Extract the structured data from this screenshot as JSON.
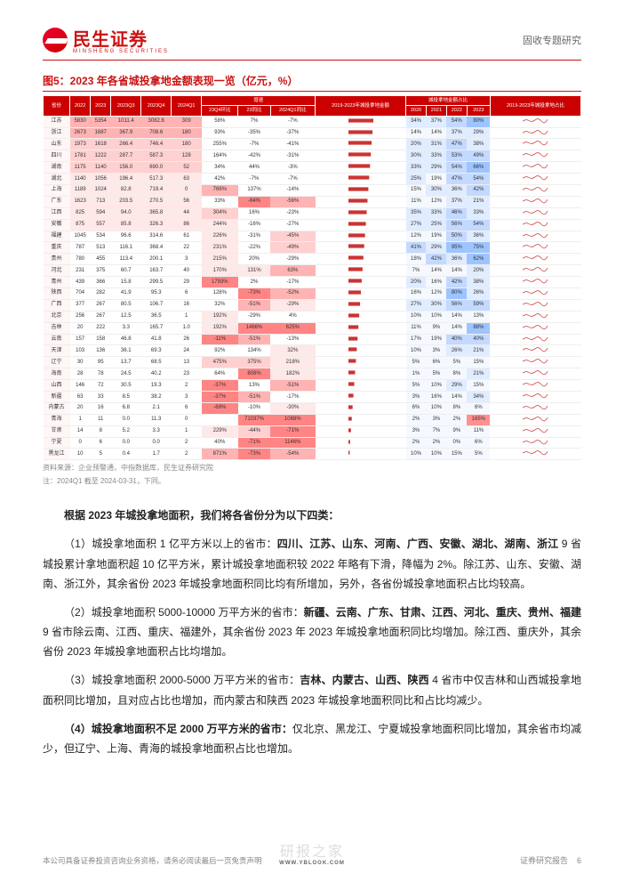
{
  "header": {
    "brand": "民生证券",
    "brand_sub": "MINSHENG SECURITIES",
    "doc_type": "固收专题研究"
  },
  "figure": {
    "title": "图5：2023 年各省城投拿地金额表现一览（亿元，%）",
    "source": "资料来源：企业预警通，中指数据库，民生证券研究院",
    "note": "注：2024Q1 截至 2024-03-31，下同。"
  },
  "table": {
    "header_row1": [
      "省份",
      "2022",
      "2023",
      "2023Q3",
      "2023Q4",
      "2024Q1",
      "增速",
      "2019-2023年城投拿地金额",
      "城投拿地金额占比",
      "2019-2023年城投拿地占比"
    ],
    "header_row2_growth": [
      "23Q4环比",
      "23同比",
      "2024Q1同比"
    ],
    "header_row2_ratio": [
      "2020",
      "2021",
      "2022",
      "2023"
    ],
    "rows": [
      {
        "p": "江苏",
        "v": [
          "5830",
          "5354",
          "1011.4",
          "3082.6",
          "309",
          "58%",
          "7%",
          "-7%"
        ],
        "r": [
          "34%",
          "37%",
          "54%",
          "80%"
        ],
        "c": [
          0,
          0,
          0,
          0,
          0,
          0,
          0,
          0
        ],
        "rc": [
          1,
          1,
          2,
          3
        ]
      },
      {
        "p": "浙江",
        "v": [
          "2673",
          "1687",
          "367.9",
          "708.6",
          "180",
          "93%",
          "-35%",
          "-37%"
        ],
        "r": [
          "14%",
          "14%",
          "37%",
          "29%"
        ],
        "c": [
          0,
          0,
          0,
          0,
          0,
          0,
          0,
          0
        ],
        "rc": [
          0,
          0,
          1,
          1
        ]
      },
      {
        "p": "山东",
        "v": [
          "1973",
          "1618",
          "266.4",
          "746.4",
          "180",
          "255%",
          "-7%",
          "-41%"
        ],
        "r": [
          "20%",
          "31%",
          "47%",
          "38%"
        ],
        "c": [
          0,
          0,
          0,
          0,
          0,
          0,
          0,
          0
        ],
        "rc": [
          1,
          1,
          2,
          1
        ]
      },
      {
        "p": "四川",
        "v": [
          "1781",
          "1222",
          "287.7",
          "587.3",
          "128",
          "164%",
          "-42%",
          "-31%"
        ],
        "r": [
          "30%",
          "33%",
          "53%",
          "49%"
        ],
        "c": [
          0,
          0,
          0,
          0,
          0,
          0,
          0,
          0
        ],
        "rc": [
          1,
          1,
          2,
          2
        ]
      },
      {
        "p": "湖南",
        "v": [
          "1175",
          "1140",
          "156.0",
          "690.0",
          "52",
          "34%",
          "44%",
          "-3%"
        ],
        "r": [
          "33%",
          "29%",
          "54%",
          "66%"
        ],
        "c": [
          0,
          0,
          0,
          0,
          0,
          0,
          0,
          0
        ],
        "rc": [
          1,
          1,
          2,
          3
        ]
      },
      {
        "p": "湖北",
        "v": [
          "1140",
          "1056",
          "196.4",
          "517.3",
          "63",
          "42%",
          "-7%",
          "-7%"
        ],
        "r": [
          "25%",
          "19%",
          "47%",
          "54%"
        ],
        "c": [
          0,
          0,
          0,
          0,
          0,
          0,
          0,
          0
        ],
        "rc": [
          1,
          0,
          2,
          2
        ]
      },
      {
        "p": "上海",
        "v": [
          "1189",
          "1024",
          "82.8",
          "719.4",
          "0",
          "769%",
          "137%",
          "-14%"
        ],
        "r": [
          "15%",
          "30%",
          "36%",
          "42%"
        ],
        "c": [
          0,
          0,
          0,
          0,
          4,
          3,
          0,
          0
        ],
        "rc": [
          0,
          1,
          1,
          2
        ]
      },
      {
        "p": "广东",
        "v": [
          "1623",
          "713",
          "203.5",
          "270.5",
          "56",
          "33%",
          "-64%",
          "-56%"
        ],
        "r": [
          "11%",
          "12%",
          "37%",
          "21%"
        ],
        "c": [
          0,
          0,
          0,
          0,
          0,
          0,
          4,
          3
        ],
        "rc": [
          0,
          0,
          1,
          1
        ]
      },
      {
        "p": "江西",
        "v": [
          "825",
          "594",
          "94.0",
          "365.8",
          "44",
          "304%",
          "16%",
          "-23%"
        ],
        "r": [
          "35%",
          "33%",
          "46%",
          "33%"
        ],
        "c": [
          0,
          0,
          0,
          0,
          0,
          2,
          0,
          0
        ],
        "rc": [
          1,
          1,
          2,
          1
        ]
      },
      {
        "p": "安徽",
        "v": [
          "875",
          "557",
          "85.8",
          "326.3",
          "86",
          "244%",
          "-16%",
          "-27%"
        ],
        "r": [
          "27%",
          "25%",
          "56%",
          "54%"
        ],
        "c": [
          0,
          0,
          0,
          0,
          0,
          1,
          0,
          0
        ],
        "rc": [
          1,
          1,
          2,
          2
        ]
      },
      {
        "p": "福建",
        "v": [
          "1045",
          "534",
          "96.6",
          "314.6",
          "61",
          "226%",
          "-31%",
          "-45%"
        ],
        "r": [
          "12%",
          "19%",
          "50%",
          "36%"
        ],
        "c": [
          0,
          0,
          0,
          0,
          0,
          1,
          0,
          2
        ],
        "rc": [
          0,
          0,
          2,
          1
        ]
      },
      {
        "p": "重庆",
        "v": [
          "787",
          "513",
          "116.1",
          "368.4",
          "22",
          "231%",
          "-22%",
          "-49%"
        ],
        "r": [
          "41%",
          "29%",
          "95%",
          "75%"
        ],
        "c": [
          0,
          0,
          0,
          0,
          0,
          1,
          0,
          2
        ],
        "rc": [
          2,
          1,
          3,
          3
        ]
      },
      {
        "p": "贵州",
        "v": [
          "780",
          "455",
          "113.4",
          "200.1",
          "3",
          "215%",
          "20%",
          "-29%"
        ],
        "r": [
          "18%",
          "42%",
          "36%",
          "62%"
        ],
        "c": [
          0,
          0,
          0,
          0,
          0,
          1,
          0,
          0
        ],
        "rc": [
          0,
          2,
          1,
          3
        ]
      },
      {
        "p": "河北",
        "v": [
          "231",
          "375",
          "60.7",
          "163.7",
          "40",
          "170%",
          "131%",
          "63%"
        ],
        "r": [
          "7%",
          "14%",
          "14%",
          "20%"
        ],
        "c": [
          0,
          0,
          0,
          0,
          0,
          1,
          1,
          3
        ],
        "rc": [
          0,
          0,
          0,
          1
        ]
      },
      {
        "p": "青州",
        "v": [
          "439",
          "366",
          "15.8",
          "299.5",
          "29",
          "1793%",
          "2%",
          "-17%"
        ],
        "r": [
          "20%",
          "16%",
          "42%",
          "38%"
        ],
        "c": [
          0,
          0,
          0,
          0,
          0,
          4,
          0,
          0
        ],
        "rc": [
          1,
          0,
          2,
          1
        ]
      },
      {
        "p": "陕西",
        "v": [
          "704",
          "282",
          "41.9",
          "95.3",
          "6",
          "128%",
          "-73%",
          "-52%"
        ],
        "r": [
          "16%",
          "12%",
          "80%",
          "26%"
        ],
        "c": [
          0,
          0,
          0,
          0,
          0,
          0,
          4,
          3
        ],
        "rc": [
          0,
          0,
          3,
          1
        ]
      },
      {
        "p": "广西",
        "v": [
          "377",
          "267",
          "80.5",
          "106.7",
          "16",
          "32%",
          "-51%",
          "-29%"
        ],
        "r": [
          "27%",
          "30%",
          "56%",
          "59%"
        ],
        "c": [
          0,
          0,
          0,
          0,
          0,
          0,
          3,
          1
        ],
        "rc": [
          1,
          1,
          2,
          2
        ]
      },
      {
        "p": "北京",
        "v": [
          "256",
          "267",
          "12.5",
          "36.5",
          "1",
          "192%",
          "-29%",
          "4%"
        ],
        "r": [
          "10%",
          "10%",
          "14%",
          "13%"
        ],
        "c": [
          0,
          0,
          0,
          0,
          0,
          1,
          0,
          0
        ],
        "rc": [
          0,
          0,
          0,
          0
        ]
      },
      {
        "p": "吉林",
        "v": [
          "20",
          "222",
          "3.3",
          "165.7",
          "1.0",
          "192%",
          "1466%",
          "625%"
        ],
        "r": [
          "11%",
          "9%",
          "14%",
          "88%"
        ],
        "c": [
          0,
          0,
          0,
          0,
          0,
          1,
          4,
          4
        ],
        "rc": [
          0,
          0,
          0,
          3
        ]
      },
      {
        "p": "云南",
        "v": [
          "157",
          "158",
          "46.8",
          "41.8",
          "26",
          "-11%",
          "-51%",
          "-13%"
        ],
        "r": [
          "17%",
          "19%",
          "40%",
          "40%"
        ],
        "c": [
          0,
          0,
          0,
          0,
          0,
          4,
          3,
          0
        ],
        "rc": [
          0,
          0,
          2,
          2
        ]
      },
      {
        "p": "天津",
        "v": [
          "103",
          "136",
          "36.1",
          "69.3",
          "24",
          "92%",
          "134%",
          "32%"
        ],
        "r": [
          "10%",
          "3%",
          "26%",
          "21%"
        ],
        "c": [
          0,
          0,
          0,
          0,
          0,
          0,
          0,
          1
        ],
        "rc": [
          0,
          0,
          1,
          1
        ]
      },
      {
        "p": "辽宁",
        "v": [
          "30",
          "95",
          "13.7",
          "68.5",
          "13",
          "475%",
          "375%",
          "218%"
        ],
        "r": [
          "5%",
          "6%",
          "5%",
          "15%"
        ],
        "c": [
          0,
          0,
          0,
          0,
          0,
          2,
          2,
          1
        ],
        "rc": [
          0,
          0,
          0,
          0
        ]
      },
      {
        "p": "海南",
        "v": [
          "28",
          "78",
          "24.5",
          "40.2",
          "23",
          "64%",
          "808%",
          "182%"
        ],
        "r": [
          "1%",
          "5%",
          "8%",
          "21%"
        ],
        "c": [
          0,
          0,
          0,
          0,
          0,
          0,
          4,
          1
        ],
        "rc": [
          0,
          0,
          0,
          1
        ]
      },
      {
        "p": "山西",
        "v": [
          "146",
          "72",
          "30.5",
          "19.3",
          "2",
          "-37%",
          "13%",
          "-51%"
        ],
        "r": [
          "5%",
          "10%",
          "29%",
          "15%"
        ],
        "c": [
          0,
          0,
          0,
          0,
          0,
          4,
          0,
          3
        ],
        "rc": [
          0,
          0,
          1,
          0
        ]
      },
      {
        "p": "新疆",
        "v": [
          "63",
          "33",
          "8.5",
          "38.2",
          "3",
          "-37%",
          "-51%",
          "-17%"
        ],
        "r": [
          "3%",
          "16%",
          "14%",
          "34%"
        ],
        "c": [
          0,
          0,
          0,
          0,
          0,
          4,
          3,
          0
        ],
        "rc": [
          0,
          0,
          0,
          1
        ]
      },
      {
        "p": "内蒙古",
        "v": [
          "20",
          "16",
          "6.8",
          "2.1",
          "6",
          "-69%",
          "-10%",
          "-30%"
        ],
        "r": [
          "6%",
          "10%",
          "8%",
          "6%"
        ],
        "c": [
          0,
          0,
          0,
          0,
          0,
          4,
          0,
          1
        ],
        "rc": [
          0,
          0,
          0,
          0
        ]
      },
      {
        "p": "青海",
        "v": [
          "1",
          "11",
          "0.0",
          "11.3",
          "0",
          "",
          "71037%",
          "1088%"
        ],
        "r": [
          "2%",
          "3%",
          "2%",
          "165%"
        ],
        "c": [
          0,
          0,
          0,
          0,
          0,
          0,
          4,
          4
        ],
        "rc": [
          0,
          0,
          0,
          4
        ]
      },
      {
        "p": "甘肃",
        "v": [
          "14",
          "8",
          "5.2",
          "3.3",
          "1",
          "229%",
          "-44%",
          "-71%"
        ],
        "r": [
          "3%",
          "7%",
          "9%",
          "11%"
        ],
        "c": [
          0,
          0,
          0,
          0,
          0,
          1,
          2,
          4
        ],
        "rc": [
          0,
          0,
          0,
          0
        ]
      },
      {
        "p": "宁夏",
        "v": [
          "0",
          "6",
          "0.0",
          "0.0",
          "2",
          "40%",
          "-71%",
          "1146%"
        ],
        "r": [
          "2%",
          "2%",
          "0%",
          "6%"
        ],
        "c": [
          0,
          0,
          0,
          0,
          0,
          0,
          4,
          4
        ],
        "rc": [
          0,
          0,
          0,
          0
        ]
      },
      {
        "p": "黑龙江",
        "v": [
          "10",
          "5",
          "0.4",
          "1.7",
          "2",
          "871%",
          "-73%",
          "-54%"
        ],
        "r": [
          "10%",
          "10%",
          "15%",
          "5%"
        ],
        "c": [
          0,
          0,
          0,
          0,
          0,
          3,
          4,
          3
        ],
        "rc": [
          0,
          0,
          0,
          0
        ]
      }
    ],
    "heat_colors": [
      "#ffffff",
      "#ffe8e8",
      "#ffd0d0",
      "#ffb3b3",
      "#ff8585"
    ],
    "ratio_colors": [
      "#f5f9ff",
      "#e0ecff",
      "#c3d9ff",
      "#9ec4ff",
      "#ff9090"
    ]
  },
  "body": {
    "intro": "根据 2023 年城投拿地面积，我们将各省份分为以下四类：",
    "p1_lead": "（1）城投拿地面积 1 亿平方米以上的省市：",
    "p1_bold": "四川、江苏、山东、河南、广西、安徽、湖北、湖南、浙江",
    "p1_rest": " 9 省城投累计拿地面积超 10 亿平方米，累计城投拿地面积较 2022 年略有下滑，降幅为 2%。除江苏、山东、安徽、湖南、浙江外，其余省份 2023 年城投拿地面积同比均有所增加，另外，各省份城投拿地面积占比均较高。",
    "p2_lead": "（2）城投拿地面积 5000-10000 万平方米的省市：",
    "p2_bold": "新疆、云南、广东、甘肃、江西、河北、重庆、贵州、福建",
    "p2_rest": " 9 省市除云南、江西、重庆、福建外，其余省份 2023 年 2023 年城投拿地面积同比均增加。除江西、重庆外，其余省份 2023 年城投拿地面积占比均增加。",
    "p3_lead": "（3）城投拿地面积 2000-5000 万平方米的省市：",
    "p3_bold": "吉林、内蒙古、山西、陕西",
    "p3_rest": " 4 省市中仅吉林和山西城投拿地面积同比增加，且对应占比也增加，而内蒙古和陕西 2023 年城投拿地面积同比和占比均减少。",
    "p4_lead": "（4）城投拿地面积不足 2000 万平方米的省市：",
    "p4_rest": "仅北京、黑龙江、宁夏城投拿地面积同比增加，其余省市均减少，但辽宁、上海、青海的城投拿地面积占比也增加。"
  },
  "footer": {
    "disclaimer": "本公司具备证券投资咨询业务资格，请务必阅读最后一页免责声明",
    "watermark": "研报之家",
    "watermark_sub": "WWW.YBLOOK.COM",
    "right": "证券研究报告",
    "page": "6"
  }
}
